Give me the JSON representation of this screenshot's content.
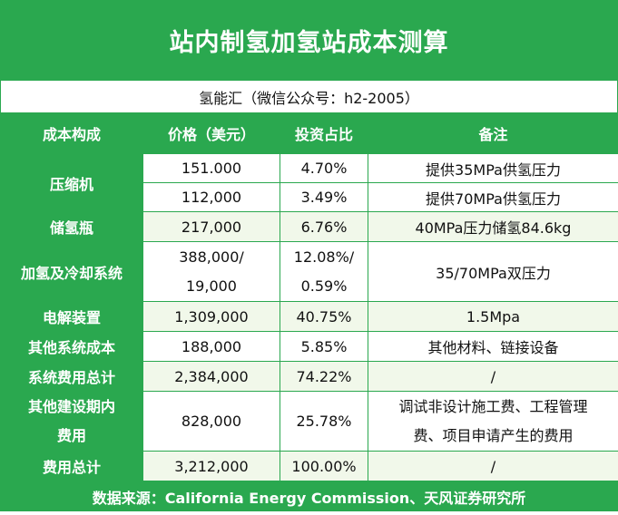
{
  "title": "站内制氢加氢站成本测算",
  "subtitle": "氢能汇（微信公众号：h2-2005）",
  "headers": [
    "成本构成",
    "价格（美元）",
    "投资占比",
    "备注"
  ],
  "rows": {
    "compressor": {
      "name": "压缩机",
      "a": {
        "price": "151.000",
        "share": "4.70%",
        "note": "提供35MPa供氢压力"
      },
      "b": {
        "price": "112,000",
        "share": "3.49%",
        "note": "提供70MPa供氢压力"
      }
    },
    "storage": {
      "name": "储氢瓶",
      "price": "217,000",
      "share": "6.76%",
      "note": "40MPa压力储氢84.6kg"
    },
    "dispenser": {
      "name": "加氢及冷却系统",
      "price_l1": "388,000/",
      "price_l2": "19,000",
      "share_l1": "12.08%/",
      "share_l2": "0.59%",
      "note": "35/70MPa双压力"
    },
    "electrolyzer": {
      "name": "电解装置",
      "price": "1,309,000",
      "share": "40.75%",
      "note": "1.5Mpa"
    },
    "other_system": {
      "name": "其他系统成本",
      "price": "188,000",
      "share": "5.85%",
      "note": "其他材料、链接设备"
    },
    "system_total": {
      "name": "系统费用总计",
      "price": "2,384,000",
      "share": "74.22%",
      "note": "/"
    },
    "other_construction": {
      "name_l1": "其他建设期内",
      "name_l2": "费用",
      "price": "828,000",
      "share": "25.78%",
      "note_l1": "调试非设计施工费、工程管理",
      "note_l2": "费、项目申请产生的费用"
    },
    "grand_total": {
      "name": "费用总计",
      "price": "3,212,000",
      "share": "100.00%",
      "note": "/"
    }
  },
  "footer": "数据来源：California Energy Commission、天风证券研究所"
}
